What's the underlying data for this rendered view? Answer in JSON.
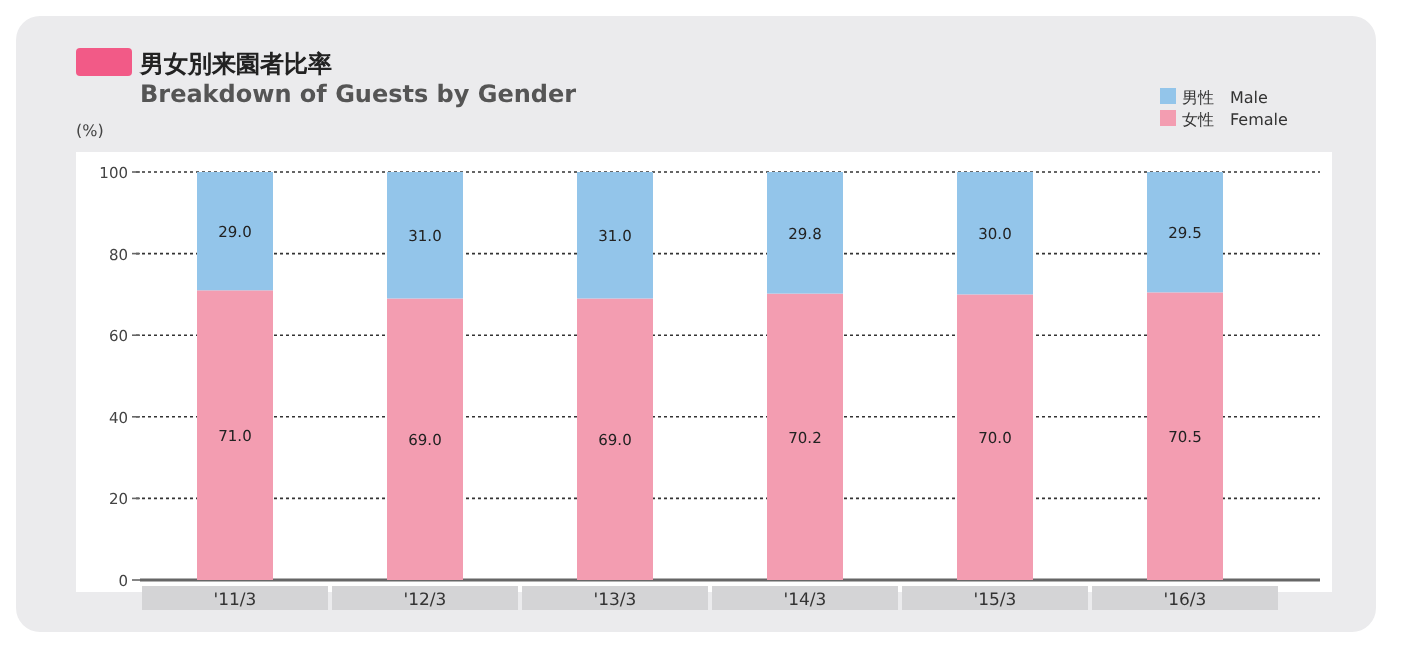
{
  "chart_data": {
    "type": "bar",
    "title": "男女別来園者比率",
    "subtitle": "Breakdown of Guests by Gender",
    "ylabel": "(%)",
    "categories": [
      "'11/3",
      "'12/3",
      "'13/3",
      "'14/3",
      "'15/3",
      "'16/3"
    ],
    "stacked": true,
    "legend": "top right",
    "grid": "y",
    "ylim": [
      0,
      100
    ],
    "yticks": [
      0,
      20,
      40,
      60,
      80,
      100
    ],
    "series": [
      {
        "name": "女性　Female",
        "color": "#f39db1",
        "values": [
          71.0,
          69.0,
          69.0,
          70.2,
          70.0,
          70.5
        ],
        "value_labels": [
          "71.0",
          "69.0",
          "69.0",
          "70.2",
          "70.0",
          "70.5"
        ]
      },
      {
        "name": "男性　Male",
        "color": "#93c5ea",
        "values": [
          29.0,
          31.0,
          31.0,
          29.8,
          30.0,
          29.5
        ],
        "value_labels": [
          "29.0",
          "31.0",
          "31.0",
          "29.8",
          "30.0",
          "29.5"
        ]
      }
    ]
  }
}
